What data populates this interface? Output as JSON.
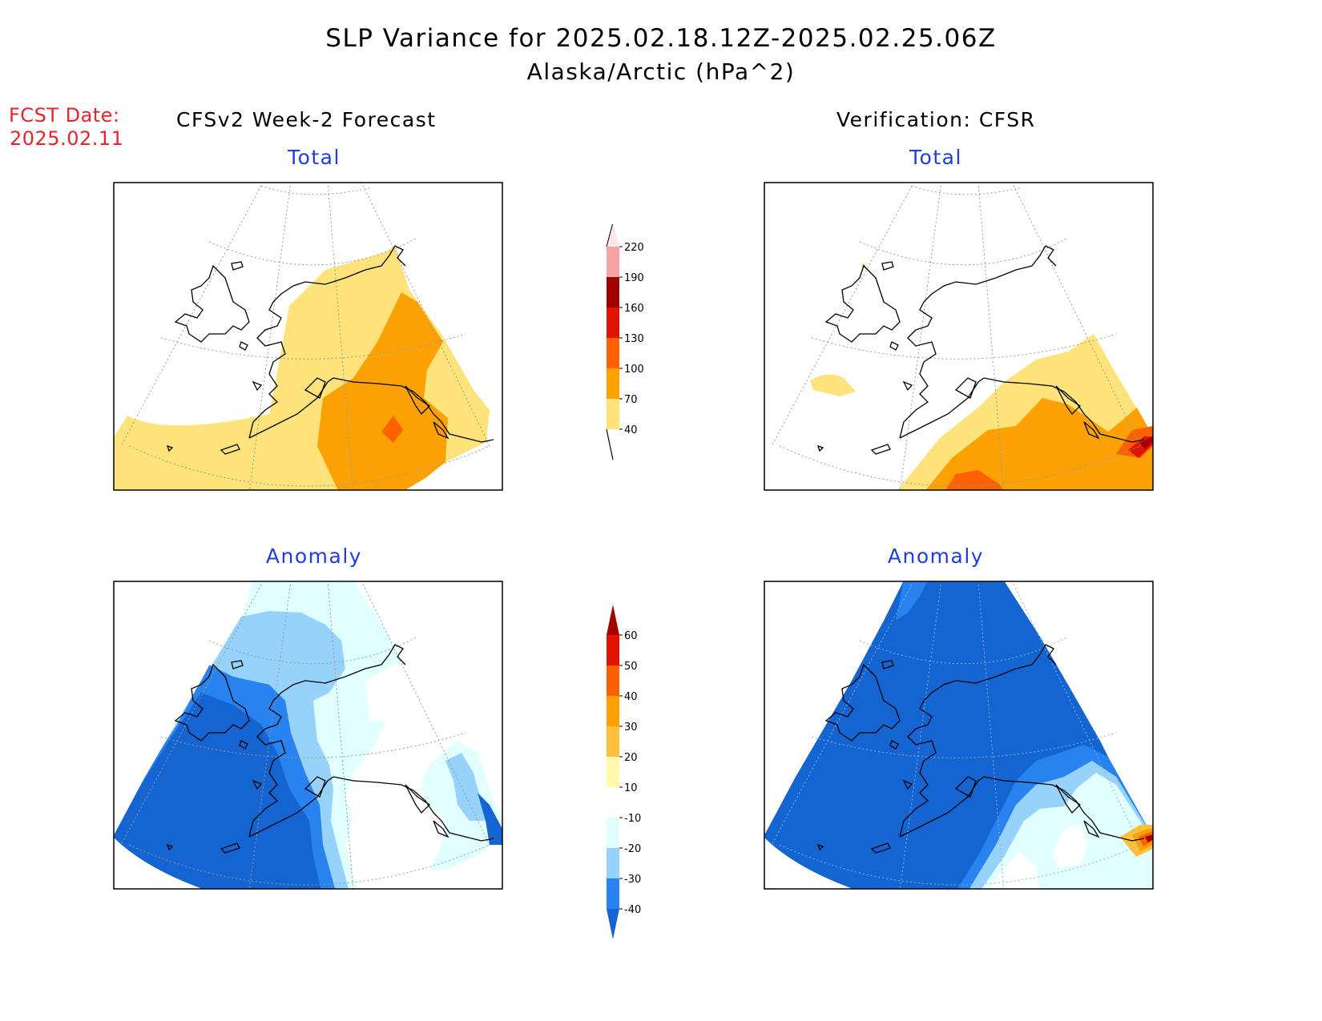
{
  "title": {
    "line1": "SLP Variance for 2025.02.18.12Z-2025.02.25.06Z",
    "line2": "Alaska/Arctic (hPa^2)"
  },
  "fcst_date": {
    "label": "FCST Date:",
    "value": "2025.02.11"
  },
  "columns": {
    "left": "CFSv2 Week-2 Forecast",
    "right": "Verification: CFSR"
  },
  "panels": {
    "top_left": "Total",
    "top_right": "Total",
    "bottom_left": "Anomaly",
    "bottom_right": "Anomaly"
  },
  "colorbars": {
    "total": {
      "labels": [
        "40",
        "70",
        "100",
        "130",
        "160",
        "190",
        "220"
      ],
      "colors": [
        "#fde37a",
        "#fca102",
        "#fd6202",
        "#e01304",
        "#9f0000",
        "#f4a4a4",
        "#fde6e6"
      ]
    },
    "anomaly": {
      "labels": [
        "-40",
        "-30",
        "-20",
        "-10",
        "10",
        "20",
        "30",
        "40",
        "50",
        "60"
      ],
      "colors": [
        "#1464d2",
        "#2882f0",
        "#96d2fa",
        "#e1ffff",
        "#ffffff",
        "#fffaaa",
        "#ffc03c",
        "#ffa000",
        "#ff6000",
        "#e11400",
        "#a50000"
      ]
    }
  },
  "chart_data": {
    "type": "heatmap",
    "variable": "SLP Variance",
    "units": "hPa^2",
    "period": "2025.02.18.12Z-2025.02.25.06Z",
    "region": "Alaska/Arctic",
    "fields": [
      {
        "panel": "CFSv2 Week-2 Forecast — Total",
        "levels_present": [
          "<40",
          "40-70",
          "70-100",
          "100-130"
        ],
        "max_region": "Gulf of Alaska / Yukon (100-130)"
      },
      {
        "panel": "Verification: CFSR — Total",
        "levels_present": [
          "<40",
          "40-70",
          "70-100",
          "100-130",
          "130-160",
          "160-190"
        ],
        "max_region": "SE corner near BC coast (160-190)"
      },
      {
        "panel": "CFSv2 Week-2 Forecast — Anomaly",
        "levels_present": [
          "<-40",
          "-40 to -30",
          "-30 to -20",
          "-20 to -10",
          "-10 to 10"
        ],
        "min_region": "Bering Sea / W Alaska (<-40)"
      },
      {
        "panel": "Verification: CFSR — Anomaly",
        "levels_present": [
          "<-40",
          "-40 to -30",
          "-30 to -20",
          "-20 to -10",
          "-10 to 10",
          "10 to 60"
        ],
        "min_region": "Most of domain (<-40)"
      }
    ]
  }
}
